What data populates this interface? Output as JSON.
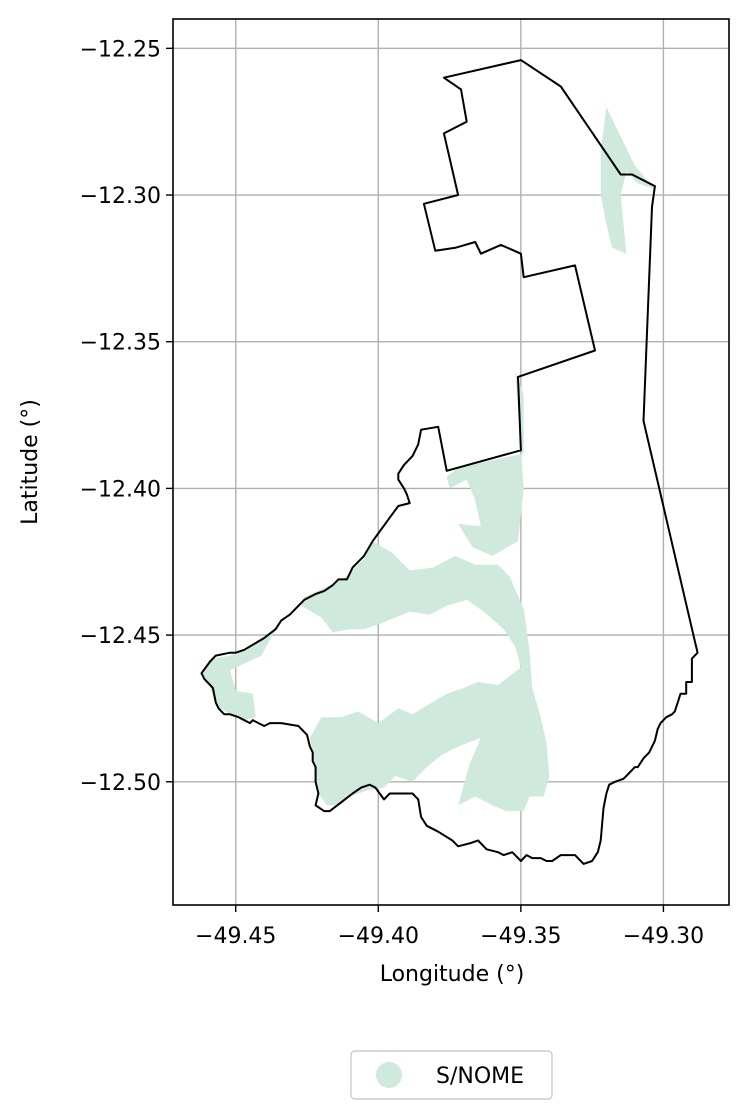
{
  "chart_data": {
    "type": "map",
    "xlabel": "Longitude (°)",
    "ylabel": "Latitude (°)",
    "xlim": [
      -49.472,
      -49.277
    ],
    "ylim": [
      -12.542,
      -12.24
    ],
    "grid": true,
    "legend_placement": "bottom-center",
    "x_ticks": [
      {
        "value": -49.45,
        "label": "−49.45"
      },
      {
        "value": -49.4,
        "label": "−49.40"
      },
      {
        "value": -49.35,
        "label": "−49.35"
      },
      {
        "value": -49.3,
        "label": "−49.30"
      }
    ],
    "y_ticks": [
      {
        "value": -12.25,
        "label": "−12.25"
      },
      {
        "value": -12.3,
        "label": "−12.30"
      },
      {
        "value": -12.35,
        "label": "−12.35"
      },
      {
        "value": -12.4,
        "label": "−12.40"
      },
      {
        "value": -12.45,
        "label": "−12.45"
      },
      {
        "value": -12.5,
        "label": "−12.50"
      }
    ],
    "legend": [
      {
        "label": "S/NOME",
        "color": "#cfeadd"
      }
    ],
    "boundary": [
      [
        -49.35,
        -12.254
      ],
      [
        -49.336,
        -12.263
      ],
      [
        -49.315,
        -12.293
      ],
      [
        -49.311,
        -12.293
      ],
      [
        -49.303,
        -12.297
      ],
      [
        -49.304,
        -12.304
      ],
      [
        -49.307,
        -12.377
      ],
      [
        -49.289,
        -12.452
      ],
      [
        -49.288,
        -12.456
      ],
      [
        -49.29,
        -12.458
      ],
      [
        -49.29,
        -12.466
      ],
      [
        -49.292,
        -12.466
      ],
      [
        -49.292,
        -12.47
      ],
      [
        -49.294,
        -12.47
      ],
      [
        -49.295,
        -12.473
      ],
      [
        -49.296,
        -12.476
      ],
      [
        -49.297,
        -12.477
      ],
      [
        -49.299,
        -12.478
      ],
      [
        -49.301,
        -12.48
      ],
      [
        -49.302,
        -12.482
      ],
      [
        -49.303,
        -12.486
      ],
      [
        -49.305,
        -12.49
      ],
      [
        -49.307,
        -12.492
      ],
      [
        -49.309,
        -12.495
      ],
      [
        -49.31,
        -12.495
      ],
      [
        -49.312,
        -12.497
      ],
      [
        -49.314,
        -12.499
      ],
      [
        -49.317,
        -12.5
      ],
      [
        -49.319,
        -12.501
      ],
      [
        -49.32,
        -12.504
      ],
      [
        -49.321,
        -12.509
      ],
      [
        -49.322,
        -12.52
      ],
      [
        -49.323,
        -12.524
      ],
      [
        -49.325,
        -12.527
      ],
      [
        -49.328,
        -12.528
      ],
      [
        -49.331,
        -12.525
      ],
      [
        -49.336,
        -12.525
      ],
      [
        -49.339,
        -12.527
      ],
      [
        -49.341,
        -12.527
      ],
      [
        -49.343,
        -12.526
      ],
      [
        -49.346,
        -12.526
      ],
      [
        -49.348,
        -12.525
      ],
      [
        -49.35,
        -12.527
      ],
      [
        -49.353,
        -12.524
      ],
      [
        -49.356,
        -12.525
      ],
      [
        -49.358,
        -12.524
      ],
      [
        -49.362,
        -12.523
      ],
      [
        -49.365,
        -12.52
      ],
      [
        -49.368,
        -12.521
      ],
      [
        -49.372,
        -12.522
      ],
      [
        -49.374,
        -12.52
      ],
      [
        -49.379,
        -12.517
      ],
      [
        -49.383,
        -12.515
      ],
      [
        -49.385,
        -12.512
      ],
      [
        -49.386,
        -12.506
      ],
      [
        -49.388,
        -12.504
      ],
      [
        -49.396,
        -12.504
      ],
      [
        -49.398,
        -12.506
      ],
      [
        -49.401,
        -12.502
      ],
      [
        -49.403,
        -12.501
      ],
      [
        -49.406,
        -12.502
      ],
      [
        -49.409,
        -12.504
      ],
      [
        -49.413,
        -12.507
      ],
      [
        -49.417,
        -12.51
      ],
      [
        -49.419,
        -12.51
      ],
      [
        -49.422,
        -12.508
      ],
      [
        -49.421,
        -12.504
      ],
      [
        -49.422,
        -12.5
      ],
      [
        -49.422,
        -12.495
      ],
      [
        -49.423,
        -12.493
      ],
      [
        -49.423,
        -12.49
      ],
      [
        -49.424,
        -12.488
      ],
      [
        -49.425,
        -12.484
      ],
      [
        -49.427,
        -12.482
      ],
      [
        -49.428,
        -12.481
      ],
      [
        -49.434,
        -12.48
      ],
      [
        -49.438,
        -12.48
      ],
      [
        -49.44,
        -12.481
      ],
      [
        -49.442,
        -12.48
      ],
      [
        -49.444,
        -12.479
      ],
      [
        -49.445,
        -12.48
      ],
      [
        -49.447,
        -12.479
      ],
      [
        -49.449,
        -12.478
      ],
      [
        -49.452,
        -12.477
      ],
      [
        -49.454,
        -12.477
      ],
      [
        -49.456,
        -12.475
      ],
      [
        -49.457,
        -12.473
      ],
      [
        -49.458,
        -12.468
      ],
      [
        -49.459,
        -12.467
      ],
      [
        -49.461,
        -12.465
      ],
      [
        -49.462,
        -12.463
      ],
      [
        -49.459,
        -12.459
      ],
      [
        -49.457,
        -12.457
      ],
      [
        -49.452,
        -12.456
      ],
      [
        -49.45,
        -12.456
      ],
      [
        -49.447,
        -12.455
      ],
      [
        -49.44,
        -12.451
      ],
      [
        -49.436,
        -12.448
      ],
      [
        -49.434,
        -12.445
      ],
      [
        -49.431,
        -12.443
      ],
      [
        -49.429,
        -12.441
      ],
      [
        -49.426,
        -12.438
      ],
      [
        -49.422,
        -12.436
      ],
      [
        -49.419,
        -12.435
      ],
      [
        -49.416,
        -12.433
      ],
      [
        -49.414,
        -12.431
      ],
      [
        -49.411,
        -12.431
      ],
      [
        -49.409,
        -12.427
      ],
      [
        -49.405,
        -12.423
      ],
      [
        -49.402,
        -12.418
      ],
      [
        -49.399,
        -12.414
      ],
      [
        -49.396,
        -12.41
      ],
      [
        -49.393,
        -12.406
      ],
      [
        -49.389,
        -12.405
      ],
      [
        -49.39,
        -12.402
      ],
      [
        -49.391,
        -12.4
      ],
      [
        -49.393,
        -12.397
      ],
      [
        -49.393,
        -12.395
      ],
      [
        -49.391,
        -12.392
      ],
      [
        -49.388,
        -12.389
      ],
      [
        -49.386,
        -12.385
      ],
      [
        -49.385,
        -12.38
      ],
      [
        -49.379,
        -12.379
      ],
      [
        -49.376,
        -12.394
      ],
      [
        -49.35,
        -12.387
      ],
      [
        -49.351,
        -12.362
      ],
      [
        -49.324,
        -12.353
      ],
      [
        -49.331,
        -12.324
      ],
      [
        -49.349,
        -12.328
      ],
      [
        -49.35,
        -12.32
      ],
      [
        -49.357,
        -12.317
      ],
      [
        -49.364,
        -12.32
      ],
      [
        -49.366,
        -12.316
      ],
      [
        -49.373,
        -12.318
      ],
      [
        -49.38,
        -12.319
      ],
      [
        -49.384,
        -12.303
      ],
      [
        -49.372,
        -12.3
      ],
      [
        -49.377,
        -12.279
      ],
      [
        -49.369,
        -12.275
      ],
      [
        -49.371,
        -12.264
      ],
      [
        -49.377,
        -12.26
      ]
    ],
    "regions": [
      {
        "name": "S/NOME",
        "points": [
          [
            -49.32,
            -12.27
          ],
          [
            -49.31,
            -12.29
          ],
          [
            -49.303,
            -12.298
          ],
          [
            -49.309,
            -12.296
          ],
          [
            -49.313,
            -12.292
          ],
          [
            -49.315,
            -12.3
          ],
          [
            -49.314,
            -12.31
          ],
          [
            -49.313,
            -12.32
          ],
          [
            -49.318,
            -12.318
          ],
          [
            -49.32,
            -12.31
          ],
          [
            -49.322,
            -12.3
          ],
          [
            -49.322,
            -12.285
          ]
        ]
      },
      {
        "name": "S/NOME",
        "points": [
          [
            -49.352,
            -12.36
          ],
          [
            -49.349,
            -12.368
          ],
          [
            -49.349,
            -12.388
          ],
          [
            -49.372,
            -12.393
          ],
          [
            -49.376,
            -12.396
          ],
          [
            -49.375,
            -12.4
          ],
          [
            -49.369,
            -12.397
          ],
          [
            -49.366,
            -12.404
          ],
          [
            -49.364,
            -12.413
          ],
          [
            -49.372,
            -12.412
          ],
          [
            -49.367,
            -12.42
          ],
          [
            -49.36,
            -12.423
          ],
          [
            -49.351,
            -12.418
          ],
          [
            -49.349,
            -12.4
          ]
        ]
      },
      {
        "name": "S/NOME",
        "points": [
          [
            -49.402,
            -12.418
          ],
          [
            -49.395,
            -12.422
          ],
          [
            -49.389,
            -12.428
          ],
          [
            -49.381,
            -12.427
          ],
          [
            -49.373,
            -12.423
          ],
          [
            -49.366,
            -12.426
          ],
          [
            -49.358,
            -12.426
          ],
          [
            -49.354,
            -12.43
          ],
          [
            -49.349,
            -12.441
          ],
          [
            -49.347,
            -12.455
          ],
          [
            -49.346,
            -12.468
          ],
          [
            -49.343,
            -12.478
          ],
          [
            -49.341,
            -12.487
          ],
          [
            -49.34,
            -12.498
          ],
          [
            -49.342,
            -12.505
          ],
          [
            -49.347,
            -12.505
          ],
          [
            -49.349,
            -12.51
          ],
          [
            -49.355,
            -12.51
          ],
          [
            -49.36,
            -12.508
          ],
          [
            -49.366,
            -12.505
          ],
          [
            -49.372,
            -12.508
          ],
          [
            -49.368,
            -12.494
          ],
          [
            -49.364,
            -12.485
          ],
          [
            -49.372,
            -12.488
          ],
          [
            -49.378,
            -12.491
          ],
          [
            -49.383,
            -12.495
          ],
          [
            -49.388,
            -12.5
          ],
          [
            -49.394,
            -12.498
          ],
          [
            -49.398,
            -12.502
          ],
          [
            -49.404,
            -12.503
          ],
          [
            -49.41,
            -12.505
          ],
          [
            -49.414,
            -12.508
          ],
          [
            -49.418,
            -12.508
          ],
          [
            -49.421,
            -12.504
          ],
          [
            -49.422,
            -12.5
          ],
          [
            -49.423,
            -12.49
          ],
          [
            -49.424,
            -12.485
          ],
          [
            -49.42,
            -12.478
          ],
          [
            -49.413,
            -12.478
          ],
          [
            -49.407,
            -12.476
          ],
          [
            -49.4,
            -12.48
          ],
          [
            -49.393,
            -12.475
          ],
          [
            -49.388,
            -12.477
          ],
          [
            -49.383,
            -12.474
          ],
          [
            -49.376,
            -12.47
          ],
          [
            -49.37,
            -12.468
          ],
          [
            -49.365,
            -12.466
          ],
          [
            -49.358,
            -12.467
          ],
          [
            -49.35,
            -12.461
          ],
          [
            -49.352,
            -12.454
          ],
          [
            -49.356,
            -12.448
          ],
          [
            -49.363,
            -12.442
          ],
          [
            -49.369,
            -12.438
          ],
          [
            -49.376,
            -12.44
          ],
          [
            -49.382,
            -12.443
          ],
          [
            -49.389,
            -12.442
          ],
          [
            -49.394,
            -12.444
          ],
          [
            -49.399,
            -12.446
          ],
          [
            -49.405,
            -12.448
          ],
          [
            -49.41,
            -12.448
          ],
          [
            -49.416,
            -12.449
          ],
          [
            -49.42,
            -12.444
          ],
          [
            -49.427,
            -12.44
          ],
          [
            -49.426,
            -12.437
          ],
          [
            -49.417,
            -12.433
          ],
          [
            -49.411,
            -12.43
          ],
          [
            -49.405,
            -12.424
          ]
        ]
      },
      {
        "name": "S/NOME",
        "points": [
          [
            -49.436,
            -12.448
          ],
          [
            -49.44,
            -12.451
          ],
          [
            -49.446,
            -12.455
          ],
          [
            -49.452,
            -12.457
          ],
          [
            -49.458,
            -12.458
          ],
          [
            -49.462,
            -12.463
          ],
          [
            -49.459,
            -12.468
          ],
          [
            -49.457,
            -12.474
          ],
          [
            -49.452,
            -12.477
          ],
          [
            -49.447,
            -12.479
          ],
          [
            -49.443,
            -12.478
          ],
          [
            -49.444,
            -12.47
          ],
          [
            -49.45,
            -12.469
          ],
          [
            -49.452,
            -12.462
          ],
          [
            -49.441,
            -12.457
          ]
        ]
      }
    ]
  }
}
